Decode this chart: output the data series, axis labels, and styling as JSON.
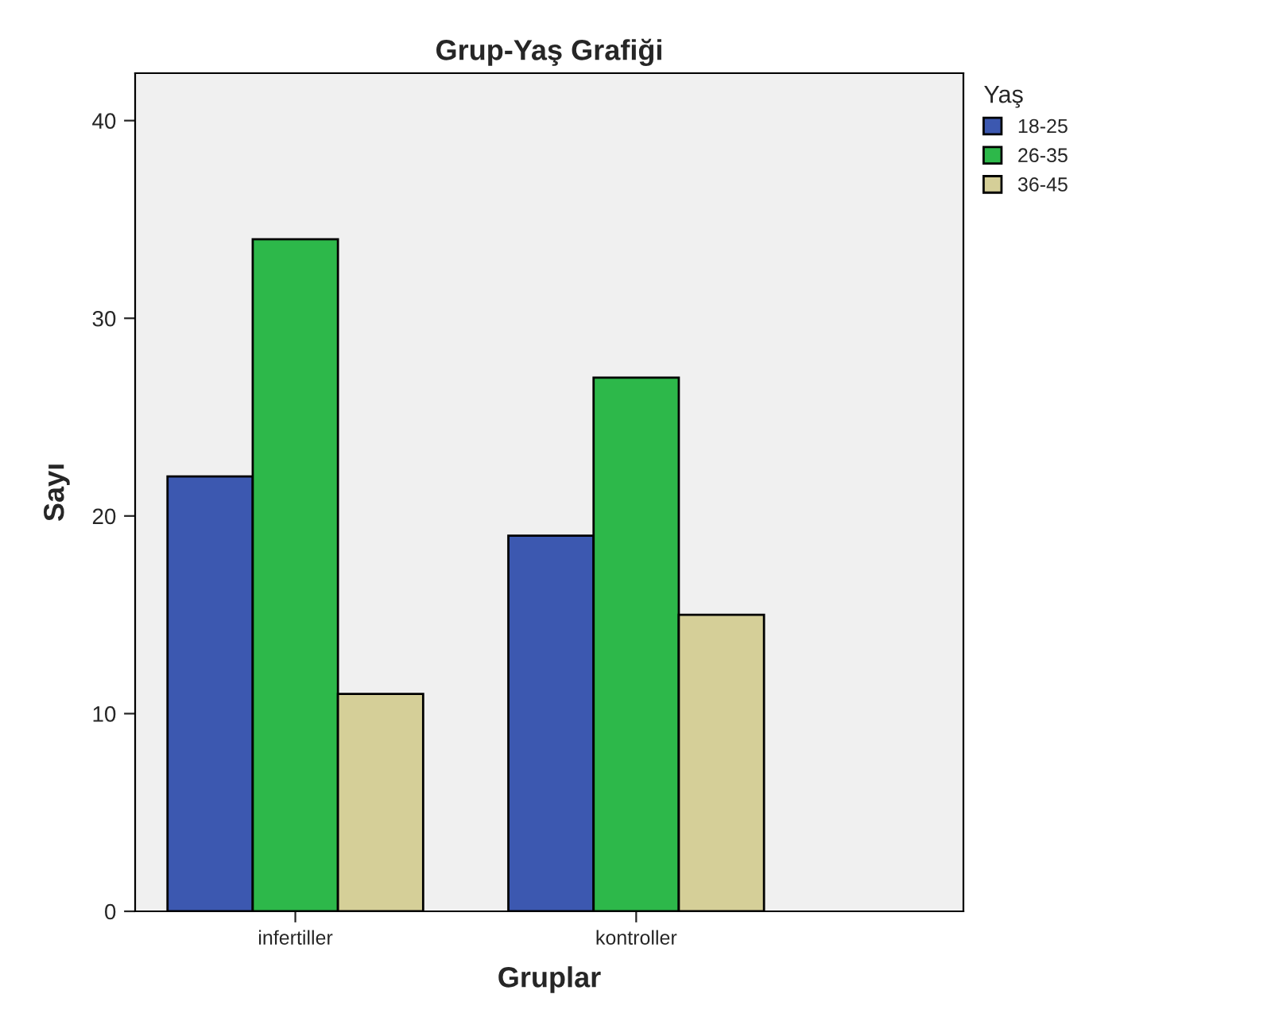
{
  "chart_data": {
    "type": "bar",
    "title": "Grup-Yaş Grafiği",
    "xlabel": "Gruplar",
    "ylabel": "Sayı",
    "legend_title": "Yaş",
    "categories": [
      "infertiller",
      "kontroller"
    ],
    "series": [
      {
        "name": "18-25",
        "color": "#3c58b0",
        "values": [
          22,
          19
        ]
      },
      {
        "name": "26-35",
        "color": "#2db84a",
        "values": [
          34,
          27
        ]
      },
      {
        "name": "36-45",
        "color": "#d5cf98",
        "values": [
          11,
          15
        ]
      }
    ],
    "ylim": [
      0,
      42.4
    ],
    "yticks": [
      0,
      10,
      20,
      30,
      40
    ],
    "grid": false,
    "legend": "top right"
  }
}
